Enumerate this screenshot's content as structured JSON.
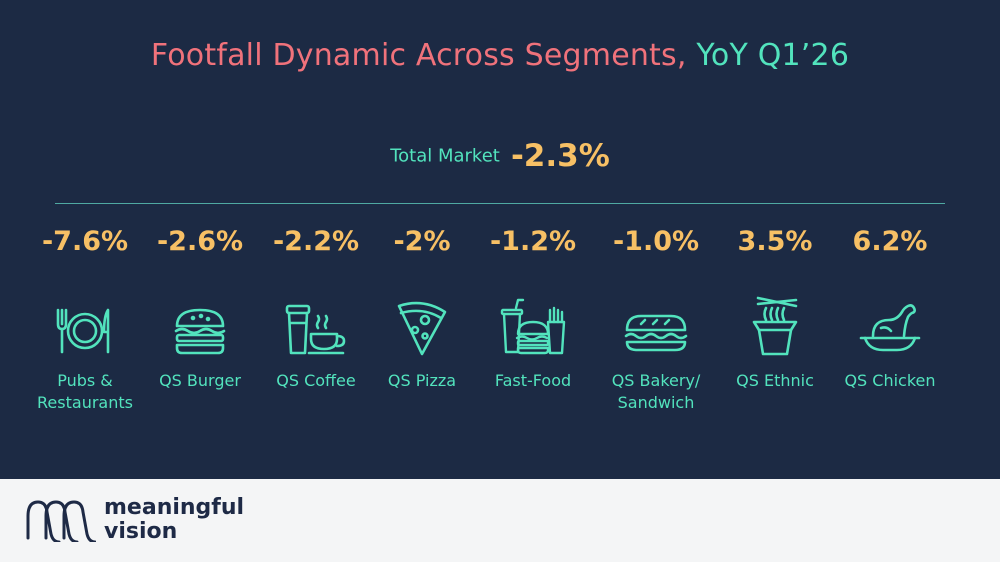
{
  "title": {
    "main": "Footfall Dynamic Across Segments,",
    "accent": "YoY Q1’26"
  },
  "total": {
    "label": "Total Market",
    "value": "-2.3%"
  },
  "segments": [
    {
      "value": "-7.6%",
      "label_1": "Pubs &",
      "label_2": "Restaurants",
      "icon": "plate-cutlery-icon"
    },
    {
      "value": "-2.6%",
      "label_1": "QS Burger",
      "label_2": "",
      "icon": "burger-icon"
    },
    {
      "value": "-2.2%",
      "label_1": "QS Coffee",
      "label_2": "",
      "icon": "coffee-icon"
    },
    {
      "value": "-2%",
      "label_1": "QS Pizza",
      "label_2": "",
      "icon": "pizza-icon"
    },
    {
      "value": "-1.2%",
      "label_1": "Fast-Food",
      "label_2": "",
      "icon": "fast-food-icon"
    },
    {
      "value": "-1.0%",
      "label_1": "QS Bakery/",
      "label_2": "Sandwich",
      "icon": "sandwich-icon"
    },
    {
      "value": "3.5%",
      "label_1": "QS Ethnic",
      "label_2": "",
      "icon": "noodle-box-icon"
    },
    {
      "value": "6.2%",
      "label_1": "QS Chicken",
      "label_2": "",
      "icon": "chicken-icon"
    }
  ],
  "brand": {
    "line_1": "meaningful",
    "line_2": "vision"
  },
  "colors": {
    "background": "#1c2a44",
    "title": "#f0727b",
    "accent": "#52e3bd",
    "value": "#f7c065",
    "footer": "#f4f5f6"
  }
}
